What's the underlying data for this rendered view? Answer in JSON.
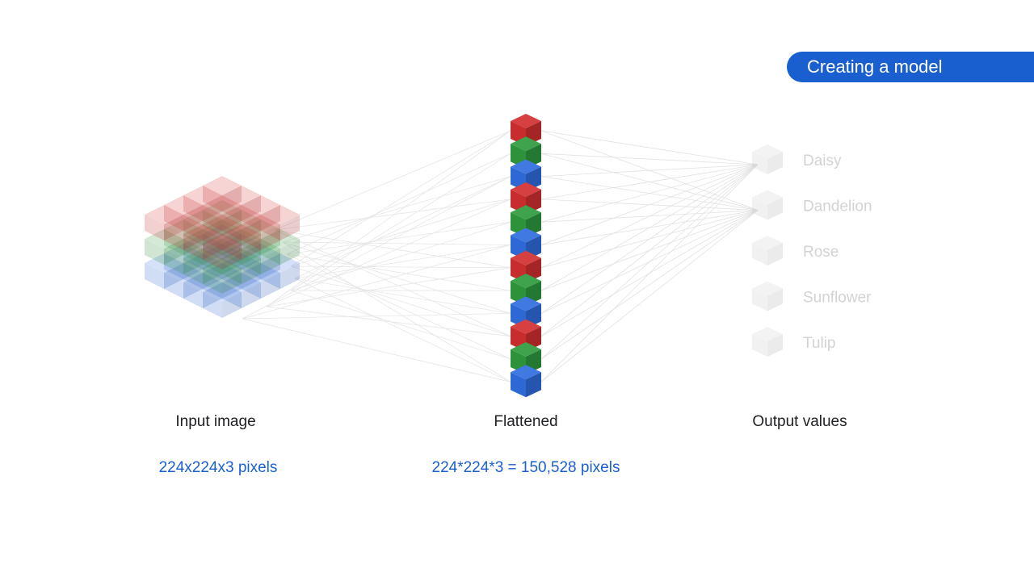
{
  "badge": {
    "label": "Creating a model",
    "color": "#1a5fd0"
  },
  "captions": {
    "input": "Input image",
    "flattened": "Flattened",
    "output": "Output values",
    "input_size": "224x224x3 pixels",
    "flattened_size": "224*224*3 = 150,528 pixels"
  },
  "output_classes": [
    "Daisy",
    "Dandelion",
    "Rose",
    "Sunflower",
    "Tulip"
  ],
  "colors": {
    "red": "#d32f2f",
    "green": "#2e9b3e",
    "blue": "#2f6de0",
    "accent": "#1a5fd0"
  },
  "flattened_column_colors": [
    "red",
    "green",
    "blue",
    "red",
    "green",
    "blue",
    "red",
    "green",
    "blue",
    "red",
    "green",
    "blue"
  ]
}
